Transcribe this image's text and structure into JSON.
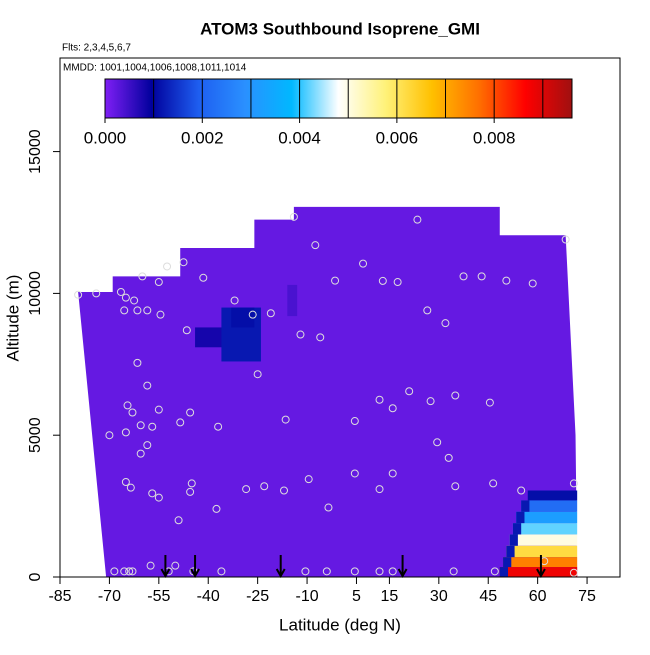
{
  "chart_data": {
    "type": "curtain",
    "title": "ATOM3 Southbound Isoprene_GMI",
    "flights_label": "Flts: 2,3,4,5,6,7",
    "dates_label": "MMDD: 1001,1004,1006,1008,1011,1014",
    "x_label": "Latitude (deg N)",
    "y_label": "Altitude (m)",
    "xlim": [
      -85,
      85
    ],
    "ylim": [
      0,
      18300
    ],
    "xticks": [
      -85,
      -70,
      -55,
      -40,
      -25,
      -10,
      5,
      15,
      30,
      45,
      60,
      75
    ],
    "yticks": [
      0,
      5000,
      10000,
      15000
    ],
    "colorbar": {
      "lim": [
        0,
        0.0096
      ],
      "colors": [
        "#7f1ff5",
        "#00009c",
        "#1e5ef0",
        "#2a90ff",
        "#00b8ff",
        "#ffffff",
        "#fff27a",
        "#ffc000",
        "#ff7000",
        "#ff0000",
        "#a01010"
      ],
      "breaks": [
        0.001,
        0.002,
        0.003,
        0.004,
        0.005,
        0.006,
        0.007,
        0.008,
        0.009
      ],
      "ticks": [
        {
          "value": 0,
          "label": "0.000"
        },
        {
          "value": 0.002,
          "label": "0.002"
        },
        {
          "value": 0.004,
          "label": "0.004"
        },
        {
          "value": 0.006,
          "label": "0.006"
        },
        {
          "value": 0.008,
          "label": "0.008"
        }
      ]
    },
    "background_value": 0.0002,
    "coverage": {
      "lat": [
        -79.5,
        -69,
        -69,
        -48.5,
        -48.5,
        -26,
        -26,
        -14,
        -14,
        48.5,
        48.5,
        68.5,
        71.5,
        72,
        -71
      ],
      "alt": [
        10050,
        10050,
        10600,
        10600,
        11600,
        11600,
        12600,
        12600,
        13050,
        13050,
        12050,
        12050,
        5000,
        0,
        0
      ]
    },
    "cells": [
      {
        "lat0": -16,
        "lat1": -13,
        "alt0": 9200,
        "alt1": 10300,
        "value": 0.0004
      },
      {
        "lat0": -44,
        "lat1": -33,
        "alt0": 8100,
        "alt1": 8800,
        "value": 0.0008
      },
      {
        "lat0": -36,
        "lat1": -24,
        "alt0": 7600,
        "alt1": 9500,
        "value": 0.0012
      },
      {
        "lat0": -33,
        "lat1": -26,
        "alt0": 8800,
        "alt1": 9500,
        "value": 0.0011
      },
      {
        "lat0": 57,
        "lat1": 72,
        "alt0": 2700,
        "alt1": 3050,
        "value": 0.0011
      },
      {
        "lat0": 55,
        "lat1": 72,
        "alt0": 2300,
        "alt1": 2700,
        "value": 0.0022
      },
      {
        "lat0": 53.5,
        "lat1": 72,
        "alt0": 1900,
        "alt1": 2300,
        "value": 0.0032
      },
      {
        "lat0": 52.5,
        "lat1": 72,
        "alt0": 1500,
        "alt1": 1900,
        "value": 0.0042
      },
      {
        "lat0": 51.5,
        "lat1": 72,
        "alt0": 1100,
        "alt1": 1500,
        "value": 0.005
      },
      {
        "lat0": 50.5,
        "lat1": 72,
        "alt0": 700,
        "alt1": 1100,
        "value": 0.0062
      },
      {
        "lat0": 49.5,
        "lat1": 72,
        "alt0": 350,
        "alt1": 700,
        "value": 0.0075
      },
      {
        "lat0": 48.5,
        "lat1": 72,
        "alt0": 0,
        "alt1": 350,
        "value": 0.0088
      },
      {
        "lat0": 55,
        "lat1": 57.5,
        "alt0": 2300,
        "alt1": 2700,
        "value": 0.0012
      },
      {
        "lat0": 53.5,
        "lat1": 56,
        "alt0": 1900,
        "alt1": 2300,
        "value": 0.0012
      },
      {
        "lat0": 52.5,
        "lat1": 55,
        "alt0": 1500,
        "alt1": 1900,
        "value": 0.0012
      },
      {
        "lat0": 51.5,
        "lat1": 54,
        "alt0": 1100,
        "alt1": 1500,
        "value": 0.0012
      },
      {
        "lat0": 50.5,
        "lat1": 53,
        "alt0": 700,
        "alt1": 1100,
        "value": 0.0012
      },
      {
        "lat0": 49.5,
        "lat1": 52,
        "alt0": 350,
        "alt1": 700,
        "value": 0.0012
      },
      {
        "lat0": 48.5,
        "lat1": 51,
        "alt0": 0,
        "alt1": 350,
        "value": 0.0012
      }
    ],
    "samples": {
      "lat": [
        -79.5,
        -74,
        -66.5,
        -65,
        -62.5,
        -65.5,
        -61.5,
        -58.5,
        -54.5,
        -60,
        -55,
        -52.5,
        -47.5,
        -41.5,
        -32,
        -46.5,
        -26.5,
        -21,
        -14,
        -7.5,
        -1.5,
        7,
        13,
        17.5,
        23.5,
        26.5,
        32,
        37.5,
        43,
        50.5,
        58.5,
        68.5,
        -12,
        -6,
        -61.5,
        -58.5,
        -64.5,
        -63,
        -55,
        -45.5,
        -48.5,
        -60.5,
        -57,
        -70,
        -65,
        -37,
        -16.5,
        -25,
        -58.5,
        -60.5,
        21,
        12,
        16,
        27.5,
        35,
        45.5,
        29.5,
        33,
        4.5,
        -65,
        -63.5,
        -57,
        -55,
        -45,
        -45.5,
        -28.5,
        -23,
        -17,
        -9.5,
        -3.5,
        4.5,
        16,
        12,
        35,
        46.5,
        55,
        -49,
        -37.5,
        71,
        -68.5,
        -65.5,
        -63,
        -50,
        -44.5,
        -36,
        -10.5,
        -4,
        4.5,
        12,
        16,
        34.5,
        47,
        62,
        71,
        -57.5,
        -52,
        -64
      ],
      "alt": [
        9950,
        10000,
        10050,
        9850,
        9750,
        9400,
        9400,
        9400,
        9250,
        10600,
        10400,
        10950,
        11100,
        10550,
        9750,
        8700,
        9250,
        9300,
        12700,
        11700,
        10450,
        11050,
        10440,
        10400,
        12600,
        9400,
        8950,
        10600,
        10600,
        10450,
        10350,
        11900,
        8550,
        8450,
        7550,
        6750,
        6050,
        5800,
        5900,
        5800,
        5450,
        5350,
        5300,
        5000,
        5100,
        5300,
        5550,
        7150,
        4650,
        4350,
        6550,
        6250,
        5950,
        6200,
        6400,
        6150,
        4750,
        4200,
        5500,
        3350,
        3150,
        2950,
        2800,
        3300,
        3000,
        3100,
        3200,
        3050,
        3450,
        2450,
        3650,
        3650,
        3100,
        3200,
        3300,
        3050,
        2000,
        2400,
        3300,
        200,
        200,
        200,
        400,
        200,
        200,
        200,
        200,
        200,
        200,
        200,
        200,
        200,
        560,
        150,
        400,
        200,
        200
      ]
    },
    "arrows": [
      -53,
      -44,
      -18,
      19,
      61
    ]
  }
}
